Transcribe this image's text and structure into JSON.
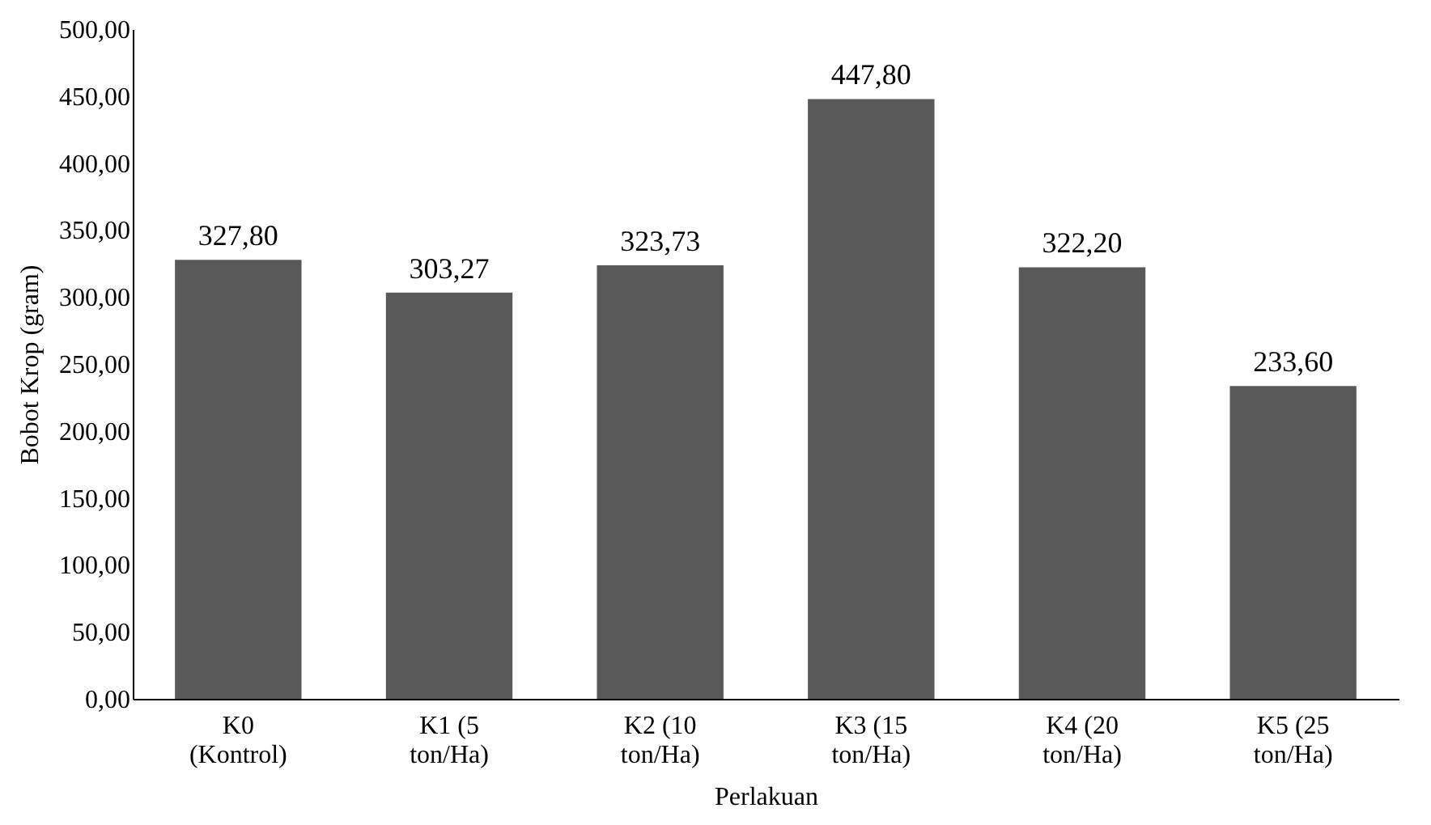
{
  "chart_data": {
    "type": "bar",
    "xlabel": "Perlakuan",
    "ylabel": "Bobot Krop (gram)",
    "categories": [
      "K0 (Kontrol)",
      "K1 (5 ton/Ha)",
      "K2 (10 ton/Ha)",
      "K3 (15 ton/Ha)",
      "K4 (20 ton/Ha)",
      "K5 (25 ton/Ha)"
    ],
    "values": [
      327.8,
      303.27,
      323.73,
      447.8,
      322.2,
      233.6
    ],
    "value_labels": [
      "327,80",
      "303,27",
      "323,73",
      "447,80",
      "322,20",
      "233,60"
    ],
    "color": "#595959",
    "ylim": [
      0,
      500
    ],
    "yticks": [
      {
        "value": 0,
        "label": "0,00"
      },
      {
        "value": 50,
        "label": "50,00"
      },
      {
        "value": 100,
        "label": "100,00"
      },
      {
        "value": 150,
        "label": "150,00"
      },
      {
        "value": 200,
        "label": "200,00"
      },
      {
        "value": 250,
        "label": "250,00"
      },
      {
        "value": 300,
        "label": "300,00"
      },
      {
        "value": 350,
        "label": "350,00"
      },
      {
        "value": 400,
        "label": "400,00"
      },
      {
        "value": 450,
        "label": "450,00"
      },
      {
        "value": 500,
        "label": "500,00"
      }
    ],
    "grid": false
  }
}
